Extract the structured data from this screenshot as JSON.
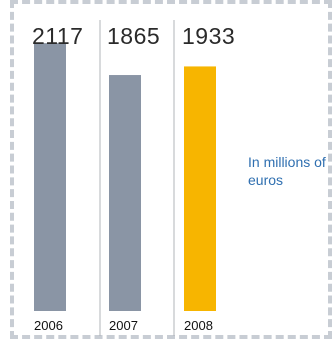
{
  "chart_data": {
    "type": "bar",
    "categories": [
      "2006",
      "2007",
      "2008"
    ],
    "values": [
      2117,
      1865,
      1933
    ],
    "value_labels": [
      "2117",
      "1865",
      "1933"
    ],
    "unit_note": "In millions of euros",
    "colors": {
      "default_bar": "#8a95a5",
      "highlight_bar": "#f7b500",
      "divider": "#b0b4ba",
      "frame": "#c8cdd4",
      "note_text": "#2f6fb0"
    },
    "highlight_index": 2,
    "ylim": [
      0,
      2300
    ],
    "grid": false
  }
}
